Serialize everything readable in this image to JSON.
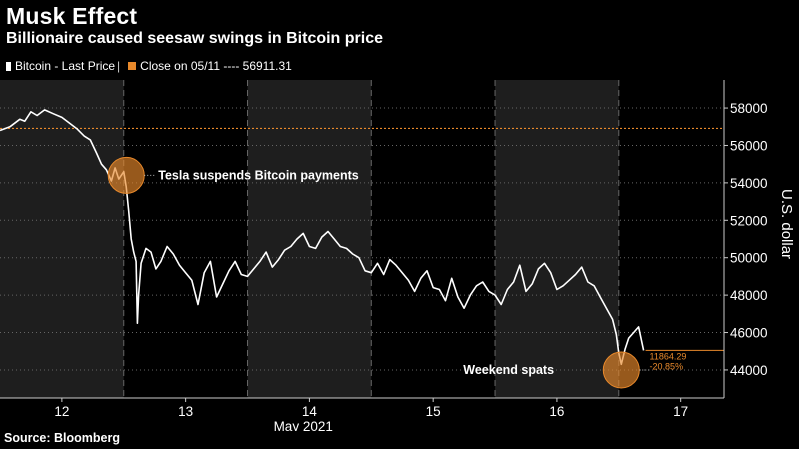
{
  "header": {
    "title": "Musk Effect",
    "subtitle": "Billionaire caused seesaw swings in Bitcoin price"
  },
  "legend": {
    "series_label": "Bitcoin - Last Price",
    "close_label": "Close on 05/11 ---- 56911.31"
  },
  "footer": {
    "source": "Source: Bloomberg"
  },
  "colors": {
    "background": "#000000",
    "weekend_band": "#1e1e1e",
    "line": "#ffffff",
    "accent": "#e8892b",
    "grid": "#666666"
  },
  "chart_data": {
    "type": "line",
    "title": "Musk Effect",
    "subtitle": "Billionaire caused seesaw swings in Bitcoin price",
    "ylabel": "U.S. dollar",
    "xlabel": "May 2021",
    "ylim": [
      42500,
      59500
    ],
    "xlim": [
      11.5,
      17.35
    ],
    "y_ticks": [
      44000,
      46000,
      48000,
      50000,
      52000,
      54000,
      56000,
      58000
    ],
    "x_ticks": [
      {
        "value": 12,
        "label": "12"
      },
      {
        "value": 13,
        "label": "13"
      },
      {
        "value": 14,
        "label": "14"
      },
      {
        "value": 15,
        "label": "15"
      },
      {
        "value": 16,
        "label": "16"
      },
      {
        "value": 17,
        "label": "17"
      }
    ],
    "shaded_periods": [
      [
        11.5,
        12.5
      ],
      [
        13.5,
        14.5
      ],
      [
        15.5,
        16.5
      ]
    ],
    "reference_line": {
      "value": 56911.31,
      "label": "Close on 05/11"
    },
    "end_annotation": {
      "change_abs": "11864.29",
      "change_pct": "-20.85%",
      "level": 45047
    },
    "annotations": [
      {
        "text": "Tesla suspends Bitcoin payments",
        "x": 12.52,
        "y": 54400
      },
      {
        "text": "Weekend spats",
        "x": 16.52,
        "y": 44000
      }
    ],
    "grid": true,
    "legend_position": "top-left",
    "series": [
      {
        "name": "Bitcoin - Last Price",
        "x": [
          11.5,
          11.58,
          11.66,
          11.7,
          11.75,
          11.8,
          11.86,
          11.93,
          12.0,
          12.06,
          12.12,
          12.18,
          12.23,
          12.28,
          12.32,
          12.36,
          12.4,
          12.43,
          12.46,
          12.5,
          12.52,
          12.54,
          12.56,
          12.58,
          12.6,
          12.61,
          12.62,
          12.64,
          12.68,
          12.72,
          12.76,
          12.8,
          12.85,
          12.9,
          12.95,
          13.0,
          13.05,
          13.1,
          13.15,
          13.2,
          13.25,
          13.3,
          13.35,
          13.4,
          13.45,
          13.5,
          13.55,
          13.6,
          13.65,
          13.7,
          13.75,
          13.8,
          13.85,
          13.9,
          13.95,
          14.0,
          14.05,
          14.1,
          14.15,
          14.2,
          14.25,
          14.3,
          14.35,
          14.4,
          14.45,
          14.5,
          14.55,
          14.6,
          14.65,
          14.7,
          14.75,
          14.8,
          14.85,
          14.9,
          14.95,
          15.0,
          15.05,
          15.1,
          15.15,
          15.2,
          15.25,
          15.3,
          15.35,
          15.4,
          15.45,
          15.5,
          15.55,
          15.6,
          15.65,
          15.7,
          15.75,
          15.8,
          15.85,
          15.9,
          15.95,
          16.0,
          16.05,
          16.1,
          16.15,
          16.2,
          16.25,
          16.3,
          16.35,
          16.4,
          16.45,
          16.48,
          16.5,
          16.52,
          16.55,
          16.58,
          16.62,
          16.66,
          16.7
        ],
        "values": [
          56800,
          57000,
          57400,
          57300,
          57800,
          57600,
          57900,
          57700,
          57500,
          57200,
          56900,
          56500,
          56300,
          55600,
          55000,
          54700,
          54100,
          54800,
          54200,
          54600,
          53800,
          52500,
          51000,
          50300,
          49800,
          46500,
          48000,
          49700,
          50500,
          50300,
          49400,
          49800,
          50600,
          50200,
          49600,
          49200,
          48800,
          47500,
          49200,
          49800,
          47900,
          48600,
          49300,
          49800,
          49100,
          49000,
          49400,
          49800,
          50300,
          49500,
          49900,
          50400,
          50600,
          51000,
          51300,
          50600,
          50500,
          51100,
          51400,
          51000,
          50600,
          50500,
          50200,
          50000,
          49300,
          49200,
          49700,
          49100,
          49900,
          49600,
          49200,
          48800,
          48200,
          48900,
          49300,
          48400,
          48300,
          47700,
          48900,
          47900,
          47300,
          48000,
          48500,
          48700,
          48200,
          48000,
          47500,
          48300,
          48700,
          49600,
          48200,
          48600,
          49400,
          49700,
          49200,
          48300,
          48500,
          48800,
          49100,
          49500,
          48700,
          48500,
          47900,
          47300,
          46700,
          45900,
          44900,
          44300,
          45100,
          45700,
          46000,
          46300,
          45047
        ]
      }
    ]
  }
}
